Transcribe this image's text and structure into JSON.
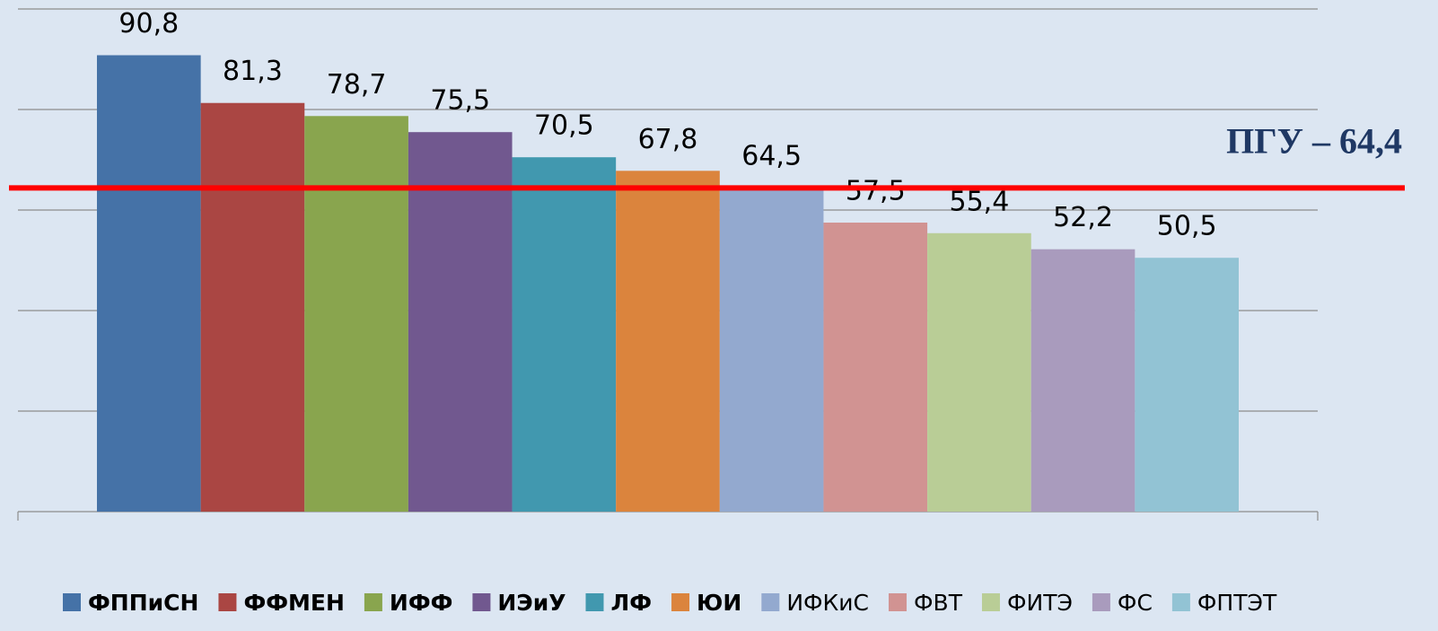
{
  "chart_data": {
    "type": "bar",
    "series": [
      {
        "name": "ФППиСН",
        "color": "#4572a7",
        "values": [
          90.8
        ],
        "value_labels": [
          "90,8"
        ]
      },
      {
        "name": "ФФМЕН",
        "color": "#aa4643",
        "values": [
          81.3
        ],
        "value_labels": [
          "81,3"
        ]
      },
      {
        "name": "ИФФ",
        "color": "#89a54e",
        "values": [
          78.7
        ],
        "value_labels": [
          "78,7"
        ]
      },
      {
        "name": "ИЭиУ",
        "color": "#71588f",
        "values": [
          75.5
        ],
        "value_labels": [
          "75,5"
        ]
      },
      {
        "name": "ЛФ",
        "color": "#4198af",
        "values": [
          70.5
        ],
        "value_labels": [
          "70,5"
        ]
      },
      {
        "name": "ЮИ",
        "color": "#db843d",
        "values": [
          67.8
        ],
        "value_labels": [
          "67,8"
        ]
      },
      {
        "name": "ИФКиС",
        "color": "#93a9cf",
        "values": [
          64.5
        ],
        "value_labels": [
          "64,5"
        ]
      },
      {
        "name": "ФВТ",
        "color": "#d19392",
        "values": [
          57.5
        ],
        "value_labels": [
          "57,5"
        ]
      },
      {
        "name": "ФИТЭ",
        "color": "#b9cd96",
        "values": [
          55.4
        ],
        "value_labels": [
          "55,4"
        ]
      },
      {
        "name": "ФС",
        "color": "#a99bbd",
        "values": [
          52.2
        ],
        "value_labels": [
          "52,2"
        ]
      },
      {
        "name": "ФПТЭТ",
        "color": "#92c3d4",
        "values": [
          50.5
        ],
        "value_labels": [
          "50,5"
        ]
      }
    ],
    "legend_bold": [
      true,
      true,
      true,
      true,
      true,
      true,
      false,
      false,
      false,
      false,
      false
    ],
    "ylim": [
      0,
      100
    ],
    "yticks": [
      0,
      20,
      40,
      60,
      80,
      100
    ],
    "grid": true,
    "legend": "bottom",
    "reference_line": {
      "value": 64.4,
      "label": "ПГУ – 64,4",
      "color": "#ff0000"
    }
  }
}
